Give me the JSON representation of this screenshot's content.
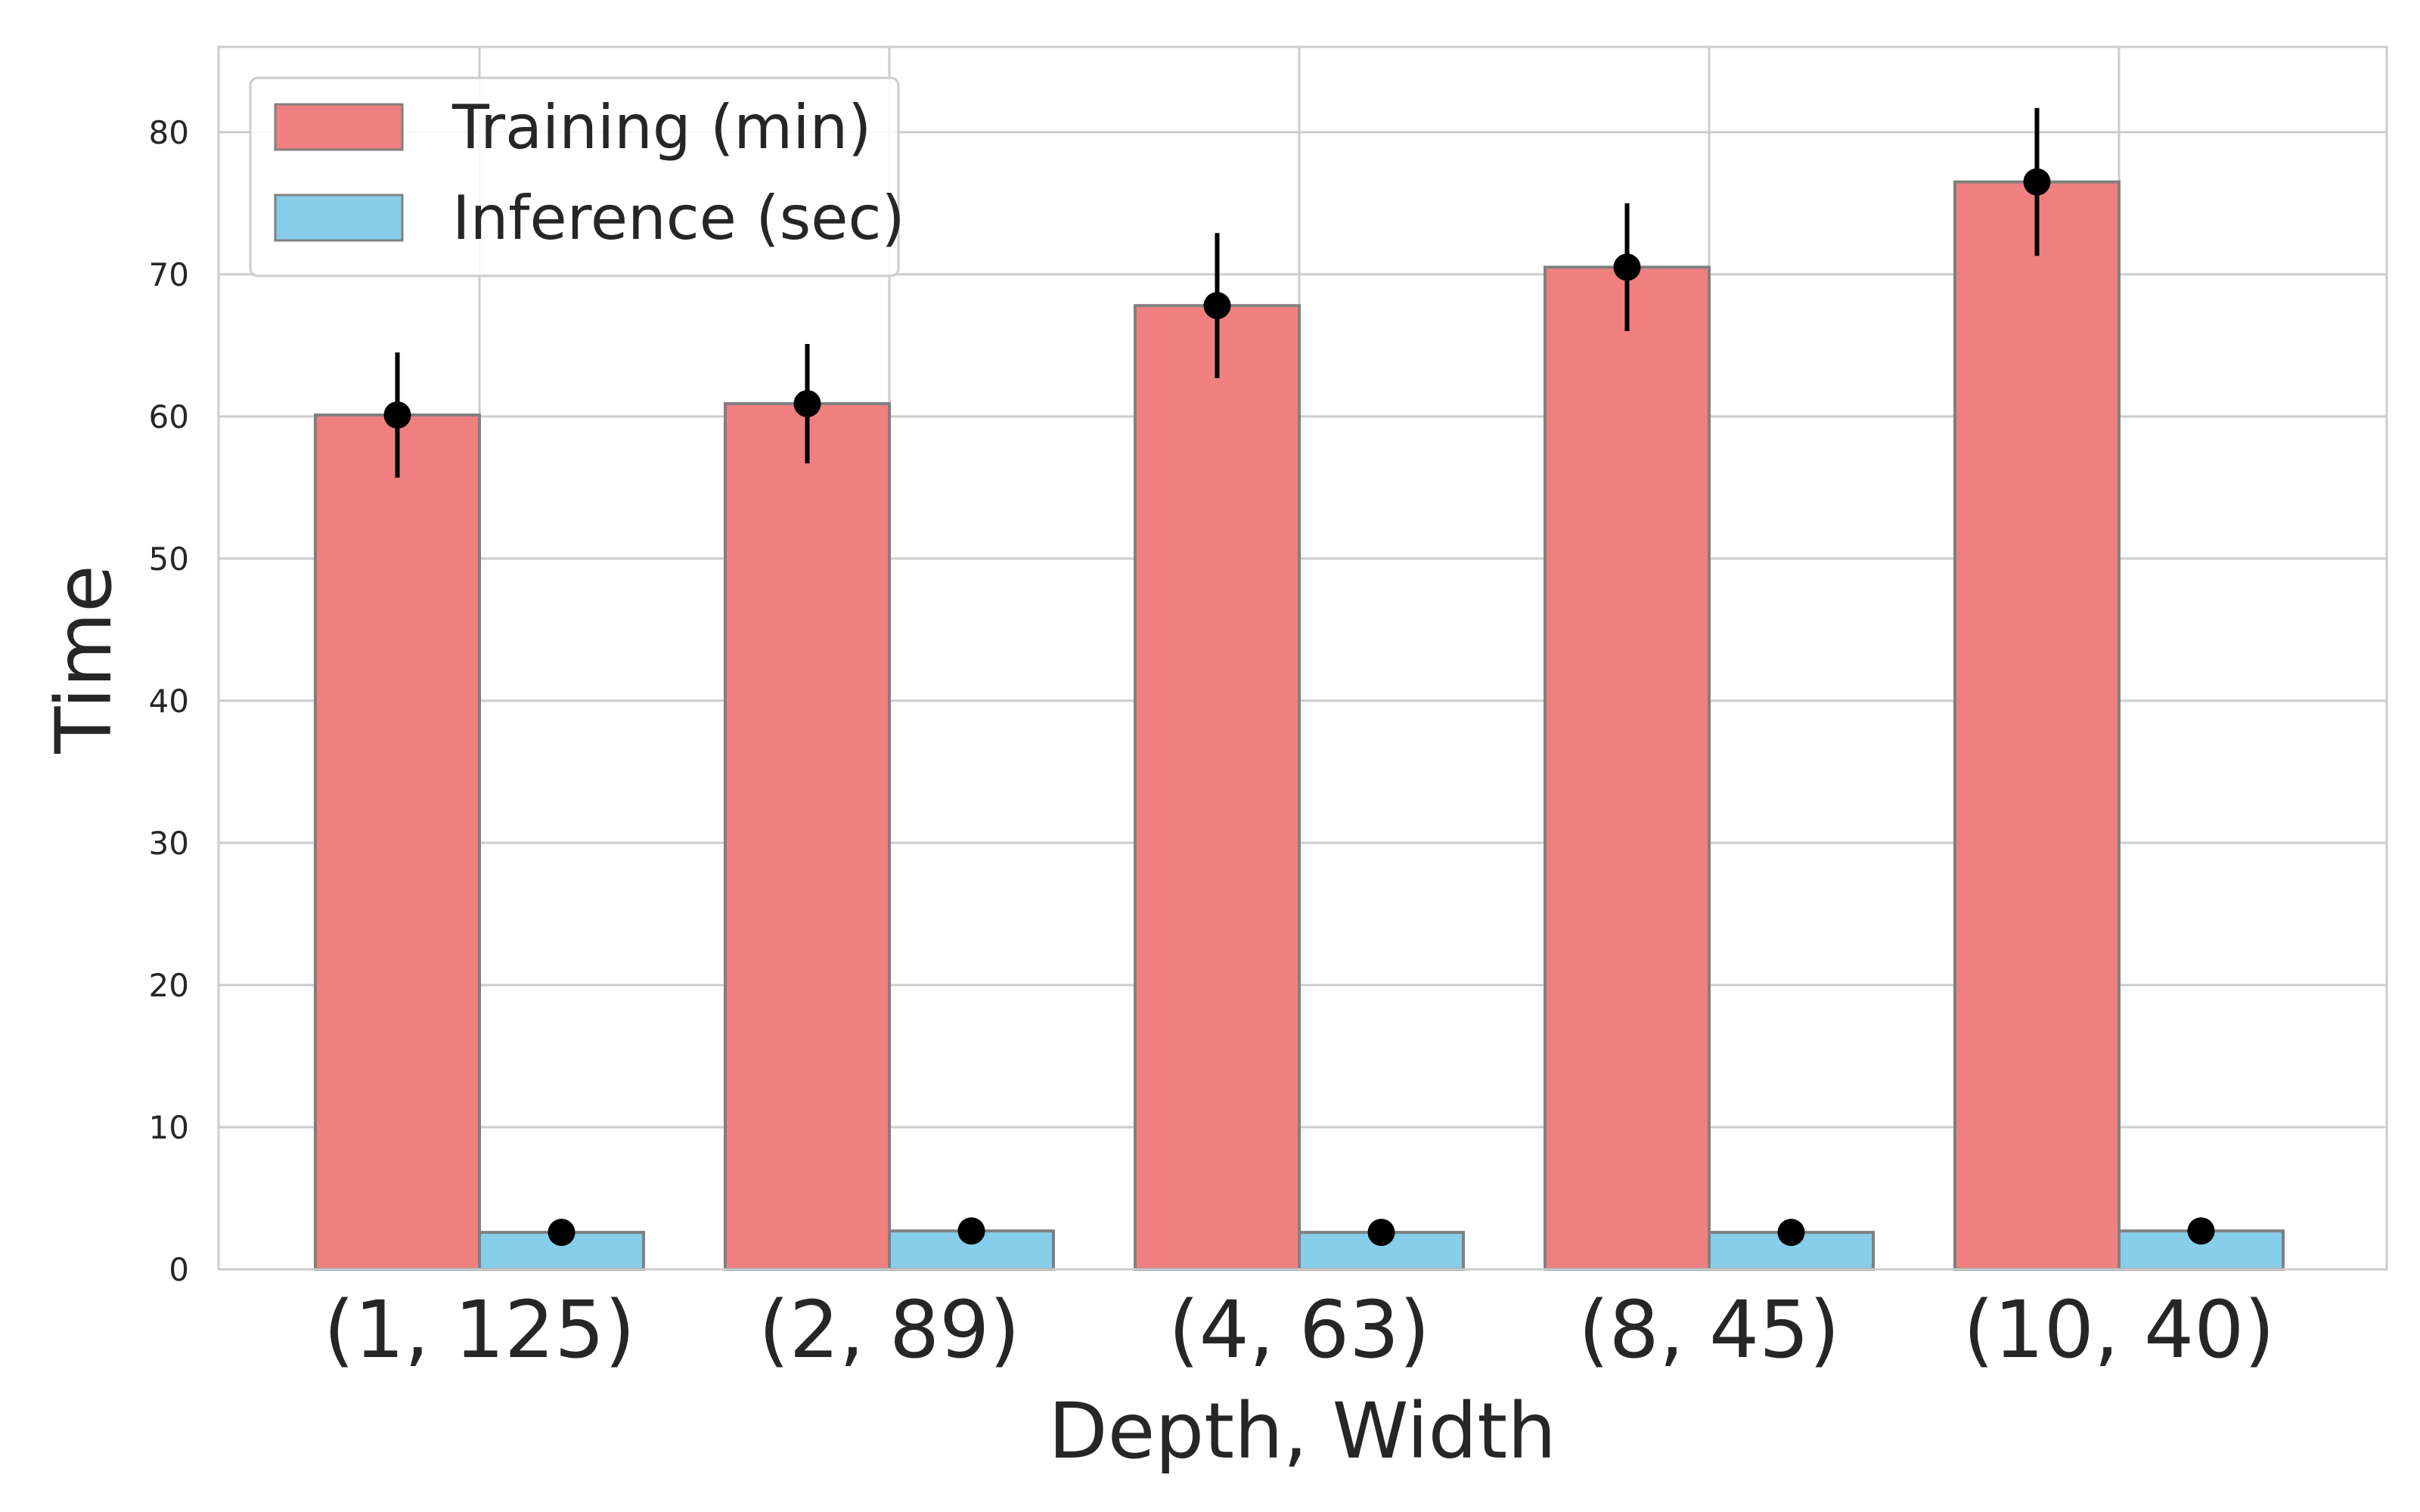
{
  "chart_data": {
    "type": "bar",
    "title": "",
    "xlabel": "Depth, Width",
    "ylabel": "Time",
    "categories": [
      "(1, 125)",
      "(2, 89)",
      "(4, 63)",
      "(8, 45)",
      "(10, 40)"
    ],
    "ylim": [
      0,
      86
    ],
    "yticks": [
      0,
      10,
      20,
      30,
      40,
      50,
      60,
      70,
      80
    ],
    "grid": true,
    "legend_position": "top-left",
    "series": [
      {
        "name": "Training (min)",
        "color": "#f08080",
        "values": [
          60.1,
          60.9,
          67.8,
          70.5,
          76.5
        ],
        "errors": [
          4.4,
          4.2,
          5.1,
          4.5,
          5.2
        ]
      },
      {
        "name": "Inference (sec)",
        "color": "#87ceeb",
        "values": [
          2.6,
          2.7,
          2.6,
          2.6,
          2.7
        ],
        "errors": [
          0,
          0,
          0,
          0,
          0
        ]
      }
    ],
    "error_marker_color": "#000000",
    "bar_edge_color": "#808080"
  }
}
